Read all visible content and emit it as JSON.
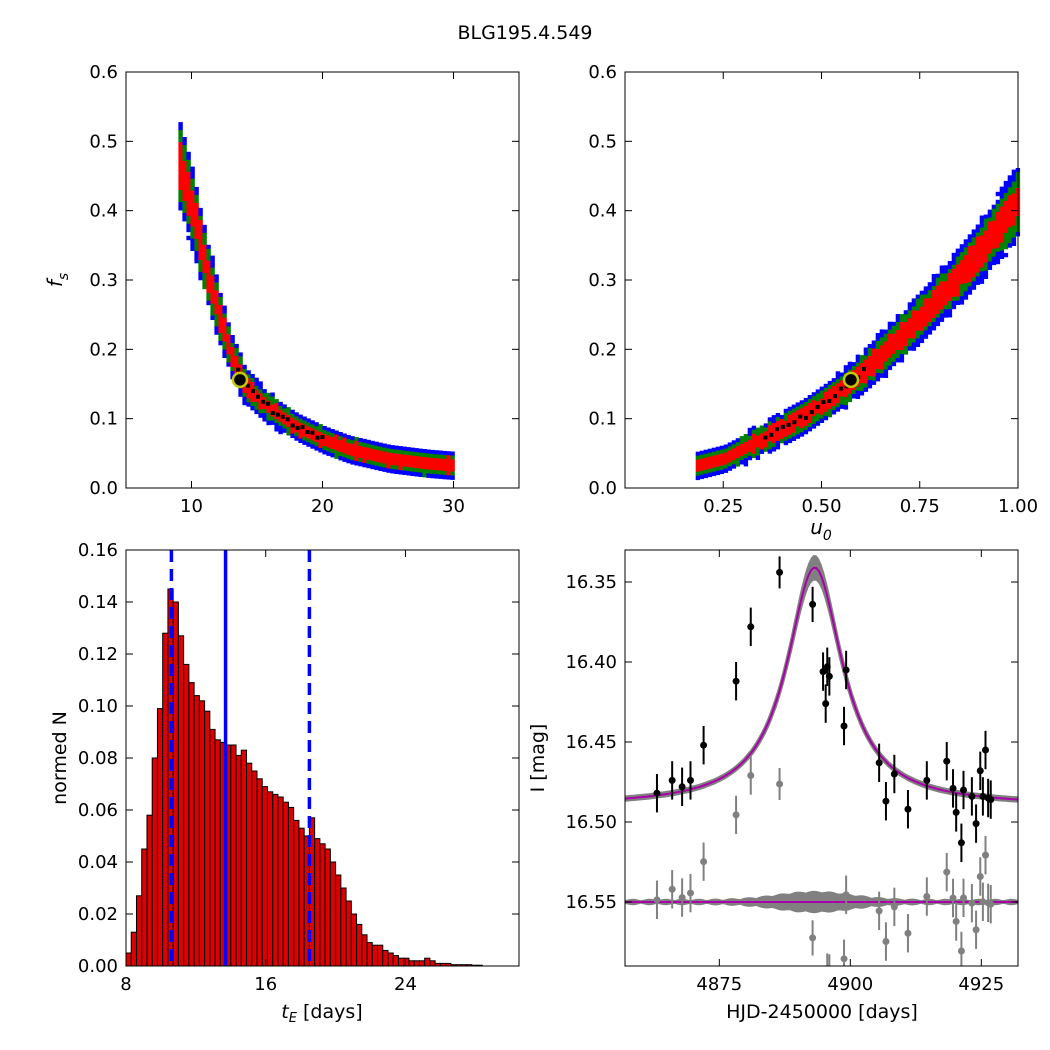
{
  "title": "BLG195.4.549",
  "colors": {
    "c1": "#ff0000",
    "c2": "#008000",
    "c3": "#0000ff",
    "best": "#000000",
    "marker_edge": "#c8c800",
    "hist_fill": "#dd0000",
    "model": "#aa00aa",
    "band": "#808080",
    "data": "#000000",
    "resid": "#808080"
  },
  "chart_data": [
    {
      "type": "heatmap",
      "xlabel": "",
      "ylabel": "f_s",
      "xlim": [
        5,
        35
      ],
      "ylim": [
        0.0,
        0.6
      ],
      "xticks": [
        "10",
        "20",
        "30"
      ],
      "yticks": [
        "0.0",
        "0.1",
        "0.2",
        "0.3",
        "0.4",
        "0.5",
        "0.6"
      ],
      "best_fit": {
        "x": 13.7,
        "y": 0.156
      },
      "centerline": [
        [
          9.0,
          0.47
        ],
        [
          10.0,
          0.4
        ],
        [
          11.0,
          0.32
        ],
        [
          12.0,
          0.25
        ],
        [
          13.0,
          0.19
        ],
        [
          14.0,
          0.15
        ],
        [
          16.0,
          0.115
        ],
        [
          18.0,
          0.09
        ],
        [
          20.0,
          0.072
        ],
        [
          22.0,
          0.058
        ],
        [
          25.0,
          0.045
        ],
        [
          28.0,
          0.038
        ],
        [
          30.0,
          0.035
        ]
      ],
      "contours": "1-sigma red, 2-sigma green, 3-sigma blue, best chain black"
    },
    {
      "type": "heatmap",
      "xlabel": "u_0",
      "ylabel": "",
      "xlim": [
        0.0,
        1.0
      ],
      "ylim": [
        0.0,
        0.6
      ],
      "xticks": [
        "0.25",
        "0.50",
        "0.75",
        "1.00"
      ],
      "yticks": [
        "0.0",
        "0.1",
        "0.2",
        "0.3",
        "0.4",
        "0.5",
        "0.6"
      ],
      "best_fit": {
        "x": 0.575,
        "y": 0.156
      },
      "centerline": [
        [
          0.18,
          0.035
        ],
        [
          0.25,
          0.045
        ],
        [
          0.35,
          0.075
        ],
        [
          0.45,
          0.105
        ],
        [
          0.55,
          0.145
        ],
        [
          0.65,
          0.195
        ],
        [
          0.75,
          0.25
        ],
        [
          0.85,
          0.31
        ],
        [
          0.95,
          0.38
        ],
        [
          1.0,
          0.42
        ]
      ]
    },
    {
      "type": "bar",
      "xlabel": "t_E [days]",
      "ylabel": "normed N",
      "xlim": [
        8,
        30.5
      ],
      "ylim": [
        0.0,
        0.16
      ],
      "xticks": [
        "8",
        "16",
        "24"
      ],
      "yticks": [
        "0.00",
        "0.02",
        "0.04",
        "0.06",
        "0.08",
        "0.10",
        "0.12",
        "0.14",
        "0.16"
      ],
      "bin_start": 8.0,
      "bin_width": 0.3,
      "values": [
        0.005,
        0.013,
        0.027,
        0.045,
        0.058,
        0.08,
        0.099,
        0.128,
        0.145,
        0.14,
        0.127,
        0.116,
        0.109,
        0.104,
        0.102,
        0.098,
        0.091,
        0.087,
        0.086,
        0.085,
        0.085,
        0.081,
        0.083,
        0.078,
        0.075,
        0.072,
        0.069,
        0.067,
        0.066,
        0.065,
        0.063,
        0.061,
        0.056,
        0.053,
        0.05,
        0.057,
        0.049,
        0.047,
        0.045,
        0.04,
        0.035,
        0.03,
        0.025,
        0.02,
        0.016,
        0.012,
        0.009,
        0.008,
        0.008,
        0.006,
        0.005,
        0.004,
        0.003,
        0.003,
        0.002,
        0.002,
        0.002,
        0.003,
        0.002,
        0.001,
        0.001,
        0.001,
        0.0005,
        0.0005,
        0.0005,
        0.0005,
        0.0003,
        0.0003
      ],
      "median": 13.7,
      "interval": [
        10.6,
        18.5
      ]
    },
    {
      "type": "scatter",
      "xlabel": "HJD-2450000 [days]",
      "ylabel": "I [mag]",
      "xlim": [
        4857,
        4932
      ],
      "ylim": [
        16.59,
        16.33
      ],
      "y_inverted": true,
      "xticks": [
        "4875",
        "4900",
        "4925"
      ],
      "yticks": [
        "16.35",
        "16.40",
        "16.45",
        "16.50",
        "16.55"
      ],
      "model": {
        "t0": 4893.2,
        "peak": 16.341,
        "baseline": 16.49,
        "width": 6.5
      },
      "residual_offset": 16.55,
      "points": [
        {
          "x": 4863.1,
          "y": 16.482,
          "err": 0.012
        },
        {
          "x": 4866.0,
          "y": 16.474,
          "err": 0.012
        },
        {
          "x": 4867.9,
          "y": 16.478,
          "err": 0.012
        },
        {
          "x": 4869.5,
          "y": 16.474,
          "err": 0.012
        },
        {
          "x": 4872.0,
          "y": 16.452,
          "err": 0.012
        },
        {
          "x": 4878.2,
          "y": 16.412,
          "err": 0.012
        },
        {
          "x": 4881.0,
          "y": 16.378,
          "err": 0.012
        },
        {
          "x": 4886.5,
          "y": 16.344,
          "err": 0.01
        },
        {
          "x": 4892.8,
          "y": 16.364,
          "err": 0.011
        },
        {
          "x": 4894.8,
          "y": 16.406,
          "err": 0.012
        },
        {
          "x": 4895.3,
          "y": 16.426,
          "err": 0.012
        },
        {
          "x": 4895.6,
          "y": 16.403,
          "err": 0.012
        },
        {
          "x": 4896.0,
          "y": 16.409,
          "err": 0.012
        },
        {
          "x": 4898.8,
          "y": 16.44,
          "err": 0.012
        },
        {
          "x": 4899.2,
          "y": 16.405,
          "err": 0.012
        },
        {
          "x": 4905.5,
          "y": 16.463,
          "err": 0.012
        },
        {
          "x": 4906.8,
          "y": 16.487,
          "err": 0.012
        },
        {
          "x": 4908.4,
          "y": 16.47,
          "err": 0.012
        },
        {
          "x": 4911.0,
          "y": 16.492,
          "err": 0.012
        },
        {
          "x": 4914.6,
          "y": 16.474,
          "err": 0.012
        },
        {
          "x": 4918.4,
          "y": 16.462,
          "err": 0.012
        },
        {
          "x": 4919.6,
          "y": 16.479,
          "err": 0.012
        },
        {
          "x": 4920.2,
          "y": 16.494,
          "err": 0.012
        },
        {
          "x": 4921.2,
          "y": 16.513,
          "err": 0.012
        },
        {
          "x": 4921.6,
          "y": 16.48,
          "err": 0.012
        },
        {
          "x": 4923.2,
          "y": 16.484,
          "err": 0.012
        },
        {
          "x": 4924.0,
          "y": 16.501,
          "err": 0.012
        },
        {
          "x": 4924.8,
          "y": 16.468,
          "err": 0.012
        },
        {
          "x": 4925.3,
          "y": 16.484,
          "err": 0.012
        },
        {
          "x": 4925.8,
          "y": 16.455,
          "err": 0.012
        },
        {
          "x": 4926.3,
          "y": 16.485,
          "err": 0.012
        },
        {
          "x": 4926.8,
          "y": 16.486,
          "err": 0.012
        }
      ]
    }
  ]
}
